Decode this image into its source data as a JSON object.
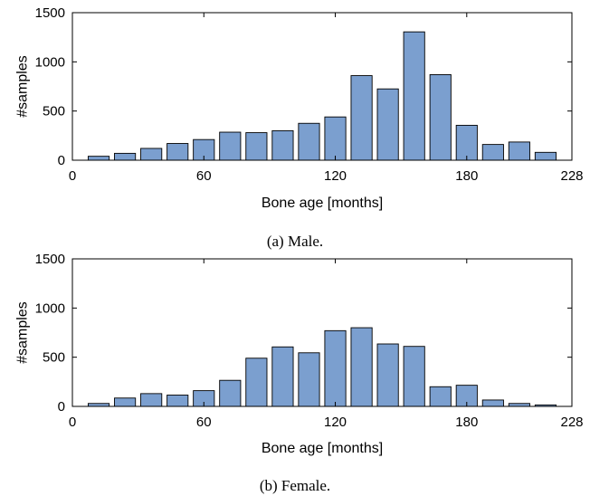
{
  "bar_color": "#7b9fcf",
  "chart_data": [
    {
      "type": "bar",
      "caption": "(a) Male.",
      "xlabel": "Bone age [months]",
      "ylabel": "#samples",
      "xlim": [
        0,
        228
      ],
      "ylim": [
        0,
        1500
      ],
      "xticks": [
        0,
        60,
        120,
        180,
        228
      ],
      "yticks": [
        0,
        500,
        1000,
        1500
      ],
      "bin_width": 12,
      "x": [
        12,
        24,
        36,
        48,
        60,
        72,
        84,
        96,
        108,
        120,
        132,
        144,
        156,
        168,
        180,
        192,
        204,
        216
      ],
      "values": [
        40,
        70,
        120,
        170,
        210,
        285,
        280,
        300,
        375,
        440,
        860,
        725,
        1305,
        870,
        355,
        160,
        185,
        80
      ]
    },
    {
      "type": "bar",
      "caption": "(b) Female.",
      "xlabel": "Bone age [months]",
      "ylabel": "#samples",
      "xlim": [
        0,
        228
      ],
      "ylim": [
        0,
        1500
      ],
      "xticks": [
        0,
        60,
        120,
        180,
        228
      ],
      "yticks": [
        0,
        500,
        1000,
        1500
      ],
      "bin_width": 12,
      "x": [
        12,
        24,
        36,
        48,
        60,
        72,
        84,
        96,
        108,
        120,
        132,
        144,
        156,
        168,
        180,
        192,
        204,
        216
      ],
      "values": [
        30,
        85,
        130,
        115,
        160,
        265,
        490,
        605,
        545,
        770,
        800,
        635,
        610,
        200,
        215,
        65,
        30,
        15
      ]
    }
  ]
}
